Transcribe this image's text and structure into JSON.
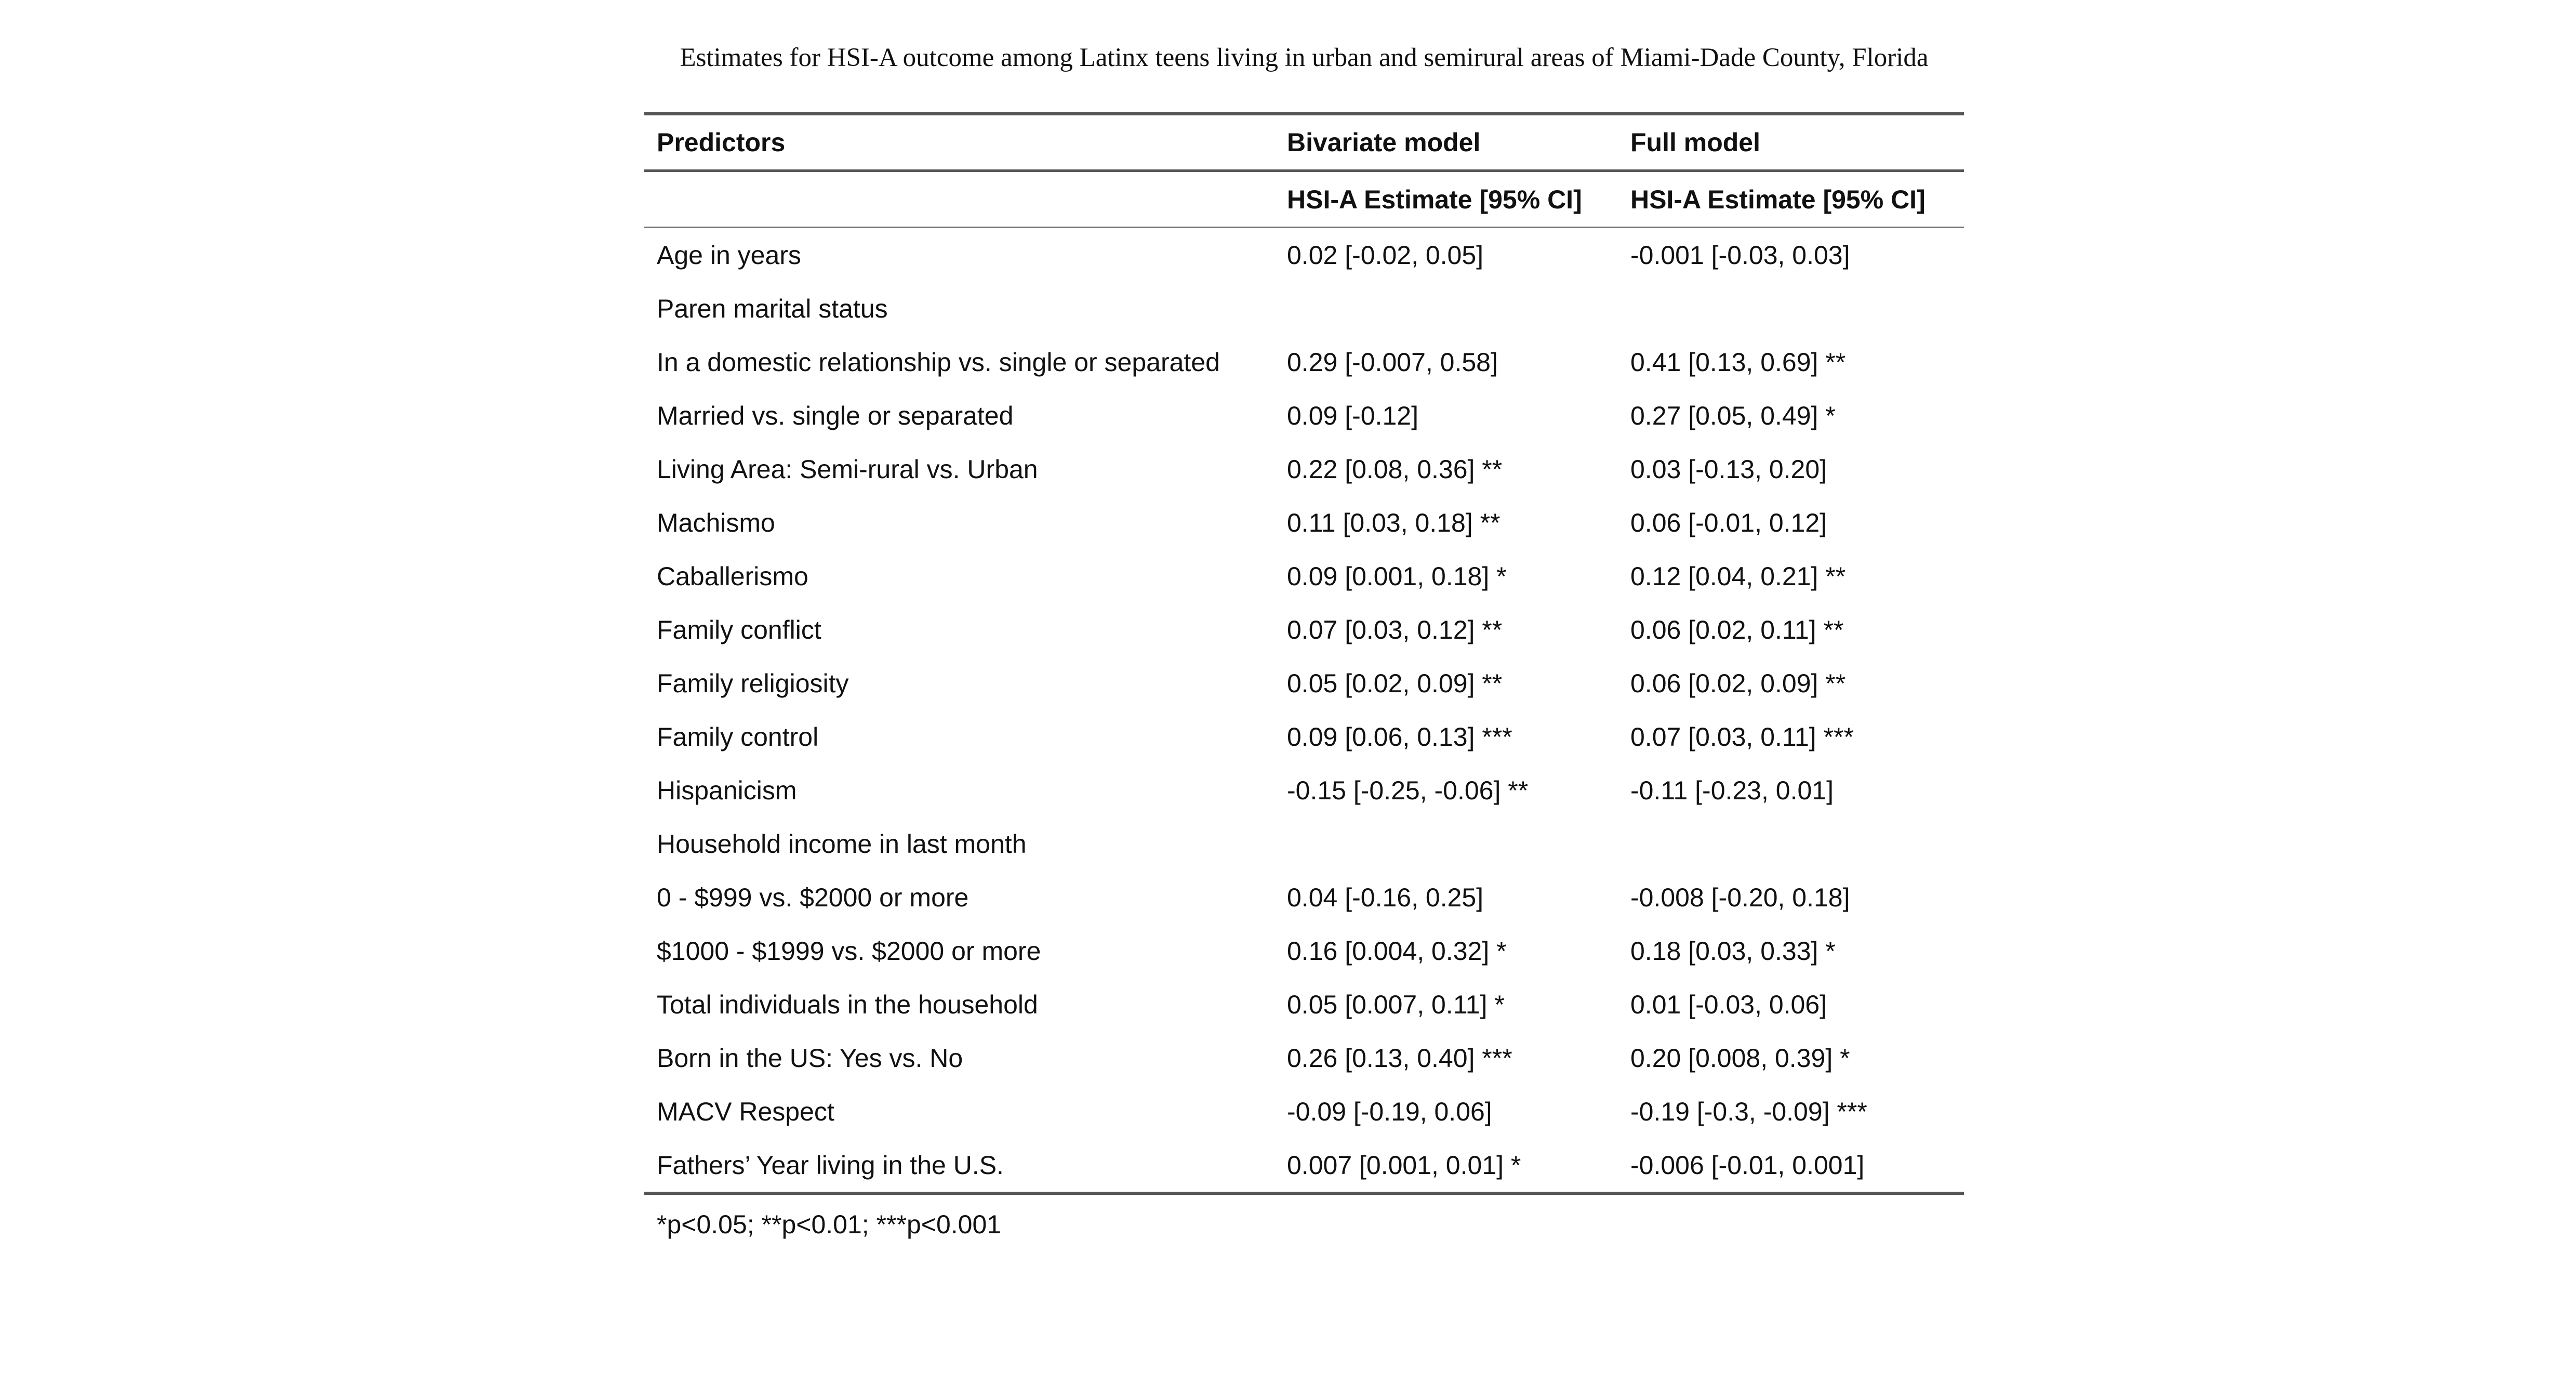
{
  "caption": "Estimates for HSI-A outcome among Latinx teens living in urban and semirural areas of Miami-Dade County, Florida",
  "table": {
    "headers": [
      "Predictors",
      "Bivariate model",
      "Full model"
    ],
    "subheaders": [
      "",
      "HSI-A Estimate [95% CI]",
      "HSI-A Estimate [95% CI]"
    ],
    "rows": [
      [
        "Age in years",
        "0.02 [-0.02, 0.05]",
        "-0.001 [-0.03, 0.03]"
      ],
      [
        "Paren marital status",
        "",
        ""
      ],
      [
        "In a domestic relationship vs. single or separated",
        "0.29 [-0.007, 0.58]",
        "0.41 [0.13, 0.69] **"
      ],
      [
        "Married vs. single or separated",
        "0.09 [-0.12]",
        "0.27 [0.05, 0.49] *"
      ],
      [
        "Living Area: Semi-rural vs. Urban",
        "0.22 [0.08, 0.36] **",
        "0.03 [-0.13, 0.20]"
      ],
      [
        "Machismo",
        "0.11 [0.03, 0.18] **",
        "0.06 [-0.01, 0.12]"
      ],
      [
        "Caballerismo",
        "0.09 [0.001, 0.18] *",
        "0.12 [0.04, 0.21] **"
      ],
      [
        "Family conflict",
        "0.07 [0.03, 0.12] **",
        "0.06 [0.02, 0.11] **"
      ],
      [
        "Family religiosity",
        "0.05 [0.02, 0.09] **",
        "0.06 [0.02, 0.09] **"
      ],
      [
        "Family control",
        "0.09 [0.06, 0.13] ***",
        "0.07 [0.03, 0.11] ***"
      ],
      [
        "Hispanicism",
        "-0.15 [-0.25, -0.06] **",
        "-0.11 [-0.23, 0.01]"
      ],
      [
        "Household income in last month",
        "",
        ""
      ],
      [
        "0 - $999 vs. $2000 or more",
        "0.04 [-0.16, 0.25]",
        "-0.008 [-0.20, 0.18]"
      ],
      [
        "$1000 - $1999 vs. $2000 or more",
        "0.16 [0.004, 0.32] *",
        "0.18 [0.03, 0.33] *"
      ],
      [
        "Total individuals in the household",
        "0.05 [0.007, 0.11] *",
        "0.01 [-0.03, 0.06]"
      ],
      [
        "Born in the US: Yes vs. No",
        "0.26 [0.13, 0.40] ***",
        "0.20 [0.008, 0.39] *"
      ],
      [
        "MACV Respect",
        "-0.09 [-0.19, 0.06]",
        "-0.19 [-0.3, -0.09] ***"
      ],
      [
        "Fathers’ Year living in the U.S.",
        "0.007 [0.001, 0.01] *",
        "-0.006 [-0.01, 0.001]"
      ]
    ],
    "footnote": "*p<0.05; **p<0.01; ***p<0.001"
  }
}
